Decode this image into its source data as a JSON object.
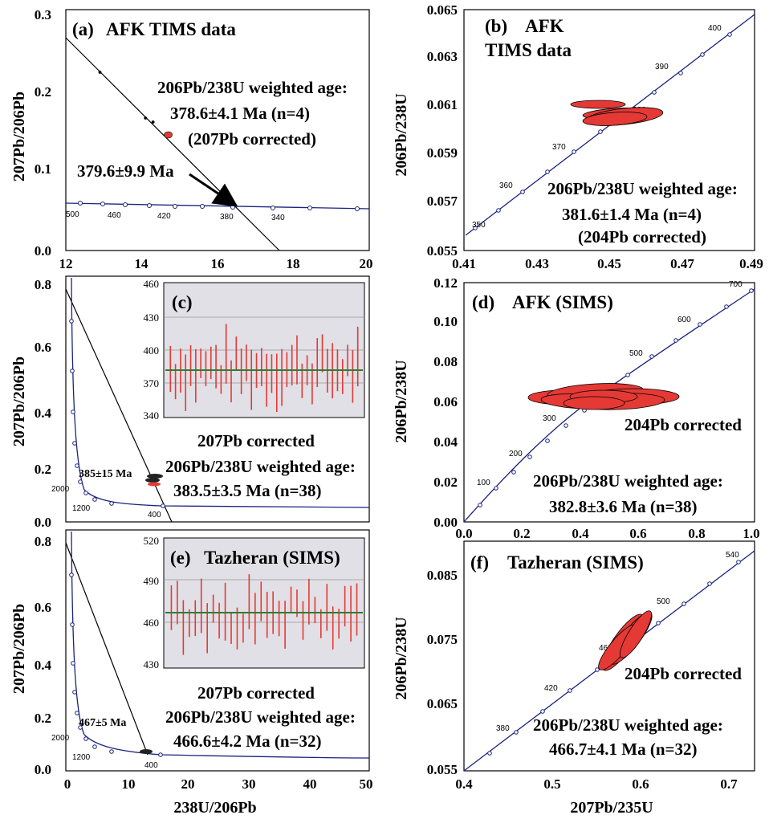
{
  "colors": {
    "concordia": "#1a237e",
    "ellipse": "#e53935",
    "inset_bg": "#e0e0e6",
    "inset_bar": "#e53935",
    "inset_mean": "#2e7d32"
  },
  "chart_data": [
    {
      "id": "a",
      "type": "scatter",
      "panel_label": "(a)",
      "title": "AFK TIMS data",
      "xlim": [
        12,
        20
      ],
      "ylim": [
        0,
        0.3
      ],
      "xticks": [
        "12",
        "14",
        "16",
        "18",
        "20"
      ],
      "yticks": [
        "0.0",
        "0.1",
        "0.2",
        "0.3"
      ],
      "ylabel": "207Pb/206Pb",
      "concordia_ages": [
        "500",
        "460",
        "420",
        "380",
        "340"
      ],
      "points": [
        {
          "x": 12.9,
          "y": 0.222
        },
        {
          "x": 14.1,
          "y": 0.165
        },
        {
          "x": 14.3,
          "y": 0.16
        },
        {
          "x": 14.7,
          "y": 0.144
        }
      ],
      "intercept_label": "379.6±9.9 Ma",
      "age_header": "206Pb/238U weighted age:",
      "age_value": "378.6±4.1 Ma (n=4)",
      "correction": "(207Pb corrected)"
    },
    {
      "id": "b",
      "type": "scatter",
      "panel_label": "(b)",
      "title": "AFK",
      "title2": "TIMS data",
      "xlim": [
        0.41,
        0.49
      ],
      "ylim": [
        0.055,
        0.065
      ],
      "xticks": [
        "0.41",
        "0.43",
        "0.45",
        "0.47",
        "0.49"
      ],
      "yticks": [
        "0.055",
        "0.057",
        "0.059",
        "0.061",
        "0.063",
        "0.065"
      ],
      "ylabel": "206Pb/238U",
      "concordia_ages": [
        "350",
        "360",
        "370",
        "380",
        "390",
        "400"
      ],
      "age_header": "206Pb/238U weighted age:",
      "age_value": "381.6±1.4 Ma (n=4)",
      "correction": "(204Pb corrected)"
    },
    {
      "id": "c",
      "type": "scatter",
      "panel_label": "(c)",
      "xlim": [
        0,
        50
      ],
      "ylim": [
        0,
        0.9
      ],
      "yticks": [
        "0.0",
        "0.2",
        "0.4",
        "0.6",
        "0.8"
      ],
      "ylabel": "207Pb/206Pb",
      "concordia_ages": [
        "2000",
        "1200",
        "400"
      ],
      "intercept_label": "385±15 Ma",
      "inset": {
        "ylim": [
          340,
          460
        ],
        "yticks": [
          "460",
          "430",
          "400",
          "370",
          "340"
        ],
        "mean": 383.5,
        "n": 38
      },
      "inset_caption": "207Pb corrected",
      "age_header": "206Pb/238U weighted age:",
      "age_value": "383.5±3.5 Ma (n=38)"
    },
    {
      "id": "d",
      "type": "scatter",
      "panel_label": "(d)",
      "title": "AFK (SIMS)",
      "xlim": [
        0,
        1
      ],
      "ylim": [
        0,
        0.12
      ],
      "xticks": [
        "0.0",
        "0.2",
        "0.4",
        "0.6",
        "0.8",
        "1.0"
      ],
      "yticks": [
        "0.00",
        "0.02",
        "0.04",
        "0.06",
        "0.08",
        "0.10",
        "0.12"
      ],
      "ylabel": "206Pb/238U",
      "concordia_ages": [
        "100",
        "200",
        "300",
        "400",
        "500",
        "600",
        "700"
      ],
      "correction": "204Pb corrected",
      "age_header": "206Pb/238U weighted age:",
      "age_value": "382.8±3.6 Ma (n=38)"
    },
    {
      "id": "e",
      "type": "scatter",
      "panel_label": "(e)",
      "title": "Tazheran (SIMS)",
      "xlim": [
        0,
        50
      ],
      "ylim": [
        0,
        0.9
      ],
      "xticks": [
        "0",
        "10",
        "20",
        "30",
        "40",
        "50"
      ],
      "yticks": [
        "0.0",
        "0.2",
        "0.4",
        "0.6",
        "0.8"
      ],
      "ylabel": "207Pb/206Pb",
      "xlabel": "238U/206Pb",
      "concordia_ages": [
        "2000",
        "1200",
        "400"
      ],
      "intercept_label": "467±5 Ma",
      "inset": {
        "ylim": [
          430,
          520
        ],
        "yticks": [
          "520",
          "490",
          "460",
          "430"
        ],
        "mean": 466.6,
        "n": 32
      },
      "inset_caption": "207Pb corrected",
      "age_header": "206Pb/238U weighted age:",
      "age_value": "466.6±4.2 Ma (n=32)"
    },
    {
      "id": "f",
      "type": "scatter",
      "panel_label": "(f)",
      "title": "Tazheran (SIMS)",
      "xlim": [
        0.4,
        0.73
      ],
      "ylim": [
        0.055,
        0.09
      ],
      "xticks": [
        "0.4",
        "0.5",
        "0.6",
        "0.7"
      ],
      "yticks": [
        "0.055",
        "0.065",
        "0.075",
        "0.085"
      ],
      "ylabel": "206Pb/238U",
      "xlabel": "207Pb/235U",
      "concordia_ages": [
        "380",
        "420",
        "460",
        "500",
        "540"
      ],
      "correction": "204Pb corrected",
      "age_header": "206Pb/238U weighted age:",
      "age_value": "466.7±4.1 Ma (n=32)"
    }
  ]
}
